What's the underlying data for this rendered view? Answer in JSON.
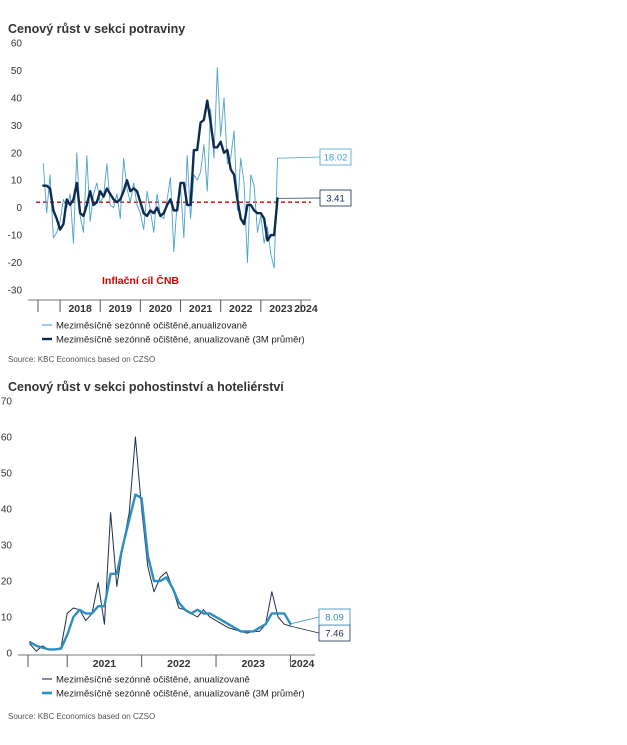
{
  "chart_data": [
    {
      "type": "line",
      "title": "Cenový růst v sekci potraviny",
      "ylim": [
        -30,
        60
      ],
      "yticks": [
        -30,
        -20,
        -10,
        0,
        10,
        20,
        30,
        40,
        50,
        60
      ],
      "xticks": [
        "2018",
        "2019",
        "2020",
        "2021",
        "2022",
        "2023",
        "2024"
      ],
      "x_start": 2017.5,
      "x_end": 2024.25,
      "start_year": 2017.583,
      "reference_line": {
        "value": 2,
        "label": "Inflační cíl ČNB",
        "color": "#d40000"
      },
      "series": [
        {
          "name": "Meziměsíčně sezónně očištěné,anualizovaně",
          "color": "#4aa3c9",
          "values": [
            16,
            -2,
            12,
            -11,
            -9,
            -5,
            3,
            0,
            5,
            -13,
            20,
            -3,
            -9,
            19,
            -5,
            5,
            9,
            2,
            4,
            16,
            1,
            0,
            5,
            -4,
            18,
            7,
            2,
            9,
            1,
            -2,
            -8,
            6,
            -1,
            -9,
            5,
            -3,
            -4,
            3,
            11,
            -16,
            2,
            8,
            -11,
            19,
            -4,
            12,
            10,
            13,
            23,
            6,
            36,
            18,
            51,
            26,
            40,
            16,
            18,
            28,
            -1,
            18,
            9,
            -20,
            12,
            8,
            -9,
            -3,
            -13,
            -7,
            -17,
            -22,
            18
          ],
          "end_label": "18.02"
        },
        {
          "name": "Meziměsíčně sezónně očištěné, anualizovaně (3M průměr)",
          "color": "#0d2b52",
          "values": [
            8,
            8,
            7,
            -1,
            -4,
            -8,
            -6,
            3,
            1,
            3,
            9,
            -2,
            -3,
            1,
            6,
            1,
            2,
            6,
            4,
            7,
            5,
            3,
            2,
            3,
            6,
            10,
            6,
            7,
            6,
            2,
            -2,
            -3,
            -1,
            -2,
            0,
            -3,
            -2,
            1,
            3,
            -1,
            -1,
            9,
            9,
            1,
            1,
            21,
            21,
            31,
            32,
            39,
            31,
            22,
            22,
            24,
            20,
            21,
            14,
            12,
            3,
            -4,
            -6,
            1,
            1,
            -1,
            -2,
            -2,
            -4,
            -12,
            -10,
            -10,
            3.41
          ],
          "end_label": "3.41"
        }
      ],
      "source": "Source: KBC Economics based on CZSO"
    },
    {
      "type": "line",
      "title": "Cenový růst v sekci pohostinství a hoteliérství",
      "ylim": [
        0,
        70
      ],
      "yticks": [
        0,
        10,
        20,
        30,
        40,
        50,
        60,
        70
      ],
      "xticks": [
        "2021",
        "2022",
        "2023",
        "2024"
      ],
      "x_start": 2020.5,
      "x_end": 2024.33,
      "start_year": 2020.5,
      "series": [
        {
          "name": "Meziměsíčně sezónně očištěné, anualizovaně",
          "color": "#1f2f4a",
          "values": [
            2.5,
            0.5,
            2,
            1,
            1,
            1.5,
            11,
            12.5,
            12,
            9,
            11,
            19.5,
            8,
            39,
            18.5,
            30,
            39,
            60,
            40,
            24,
            17,
            21,
            22.5,
            18,
            12.5,
            12,
            11,
            10,
            12,
            10,
            9,
            8,
            7,
            6.5,
            6,
            5.5,
            6,
            6,
            8,
            17,
            10,
            8,
            7.46
          ],
          "end_label": "7.46"
        },
        {
          "name": "Meziměsíčně sezónně očištěné, anualizovaně (3M průměr)",
          "color": "#2f8dbf",
          "values": [
            3,
            2,
            1.5,
            1,
            1,
            1.2,
            5,
            10,
            12,
            11,
            11,
            13,
            13,
            22,
            22,
            30,
            37,
            44,
            43,
            27,
            20,
            20,
            21,
            18,
            14,
            12,
            11,
            12,
            11,
            11,
            10,
            9,
            8,
            7,
            6,
            6,
            6,
            7,
            8,
            11,
            11,
            11,
            8.09
          ],
          "end_label": "8.09"
        }
      ],
      "source": "Source: KBC Economics based on CZSO"
    }
  ]
}
